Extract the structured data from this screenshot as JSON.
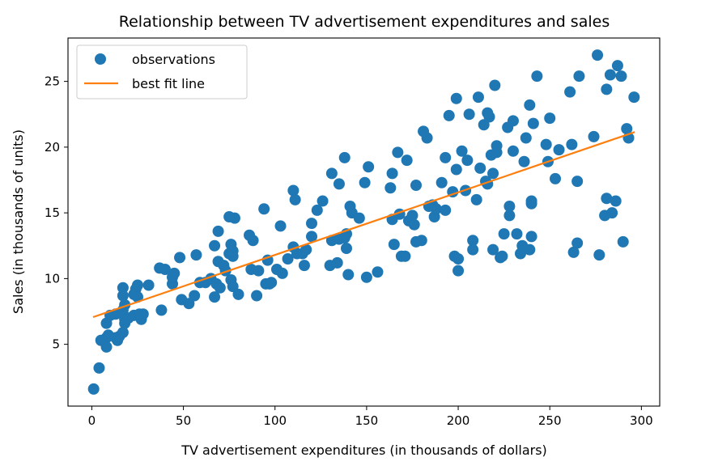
{
  "chart_data": {
    "type": "scatter",
    "title": "Relationship between TV advertisement expenditures and sales",
    "xlabel": "TV advertisement expenditures (in thousands of dollars)",
    "ylabel": "Sales (in thousands of units)",
    "xlim": [
      -13,
      310
    ],
    "ylim": [
      0.3,
      28.3
    ],
    "xticks": [
      0,
      50,
      100,
      150,
      200,
      250,
      300
    ],
    "yticks": [
      5,
      10,
      15,
      20,
      25
    ],
    "grid": false,
    "legend": {
      "position": "top-left",
      "entries": [
        {
          "label": "observations",
          "marker": "circle",
          "color": "#1f77b4"
        },
        {
          "label": "best fit line",
          "marker": "line",
          "color": "#ff7f0e"
        }
      ]
    },
    "series": [
      {
        "name": "observations",
        "kind": "scatter",
        "color": "#1f77b4",
        "points": [
          [
            1,
            1.6
          ],
          [
            4,
            3.2
          ],
          [
            5,
            5.3
          ],
          [
            8,
            5.5
          ],
          [
            8,
            4.8
          ],
          [
            8,
            6.6
          ],
          [
            9,
            5.7
          ],
          [
            10,
            7.2
          ],
          [
            13,
            7.3
          ],
          [
            13,
            5.5
          ],
          [
            14,
            5.3
          ],
          [
            15,
            5.6
          ],
          [
            17,
            5.9
          ],
          [
            17,
            7.6
          ],
          [
            17,
            8.7
          ],
          [
            17,
            9.3
          ],
          [
            18,
            6.6
          ],
          [
            18,
            6.9
          ],
          [
            18,
            8.0
          ],
          [
            20,
            7.0
          ],
          [
            23,
            7.2
          ],
          [
            23,
            8.8
          ],
          [
            24,
            9.2
          ],
          [
            25,
            8.6
          ],
          [
            25,
            9.5
          ],
          [
            26,
            7.3
          ],
          [
            27,
            6.9
          ],
          [
            28,
            7.3
          ],
          [
            31,
            9.5
          ],
          [
            37,
            10.8
          ],
          [
            38,
            7.6
          ],
          [
            40,
            10.7
          ],
          [
            44,
            9.6
          ],
          [
            44,
            10.1
          ],
          [
            45,
            10.4
          ],
          [
            48,
            11.6
          ],
          [
            49,
            8.4
          ],
          [
            53,
            8.1
          ],
          [
            56,
            8.7
          ],
          [
            57,
            11.8
          ],
          [
            59,
            9.7
          ],
          [
            62,
            9.7
          ],
          [
            65,
            10.0
          ],
          [
            67,
            8.6
          ],
          [
            67,
            12.5
          ],
          [
            68,
            9.6
          ],
          [
            69,
            13.6
          ],
          [
            69,
            11.3
          ],
          [
            70,
            9.3
          ],
          [
            72,
            11.0
          ],
          [
            73,
            10.6
          ],
          [
            75,
            14.7
          ],
          [
            75,
            11.9
          ],
          [
            76,
            12.6
          ],
          [
            76,
            9.9
          ],
          [
            77,
            11.7
          ],
          [
            77,
            12.1
          ],
          [
            77,
            9.4
          ],
          [
            78,
            14.6
          ],
          [
            80,
            8.8
          ],
          [
            86,
            13.3
          ],
          [
            87,
            10.7
          ],
          [
            88,
            12.9
          ],
          [
            90,
            8.7
          ],
          [
            91,
            10.6
          ],
          [
            94,
            15.3
          ],
          [
            95,
            9.6
          ],
          [
            96,
            11.4
          ],
          [
            97,
            9.6
          ],
          [
            98,
            9.7
          ],
          [
            101,
            10.7
          ],
          [
            103,
            14.0
          ],
          [
            104,
            10.4
          ],
          [
            107,
            11.5
          ],
          [
            110,
            16.7
          ],
          [
            110,
            12.4
          ],
          [
            111,
            16.0
          ],
          [
            112,
            11.9
          ],
          [
            115,
            11.9
          ],
          [
            116,
            11.0
          ],
          [
            117,
            12.2
          ],
          [
            120,
            13.2
          ],
          [
            120,
            14.2
          ],
          [
            123,
            15.2
          ],
          [
            126,
            15.9
          ],
          [
            130,
            11.0
          ],
          [
            131,
            18.0
          ],
          [
            131,
            12.9
          ],
          [
            134,
            11.2
          ],
          [
            135,
            13.0
          ],
          [
            135,
            17.2
          ],
          [
            138,
            13.1
          ],
          [
            138,
            19.2
          ],
          [
            139,
            13.4
          ],
          [
            139,
            12.3
          ],
          [
            140,
            10.3
          ],
          [
            141,
            15.5
          ],
          [
            142,
            15.0
          ],
          [
            146,
            14.6
          ],
          [
            149,
            17.3
          ],
          [
            150,
            10.1
          ],
          [
            151,
            18.5
          ],
          [
            156,
            10.5
          ],
          [
            163,
            16.9
          ],
          [
            164,
            18.0
          ],
          [
            164,
            14.5
          ],
          [
            165,
            12.6
          ],
          [
            167,
            19.6
          ],
          [
            168,
            14.9
          ],
          [
            169,
            11.7
          ],
          [
            171,
            11.7
          ],
          [
            172,
            19.0
          ],
          [
            173,
            14.4
          ],
          [
            175,
            14.8
          ],
          [
            176,
            14.1
          ],
          [
            177,
            12.8
          ],
          [
            177,
            17.1
          ],
          [
            180,
            12.9
          ],
          [
            181,
            21.2
          ],
          [
            183,
            20.7
          ],
          [
            184,
            15.5
          ],
          [
            186,
            15.6
          ],
          [
            187,
            14.7
          ],
          [
            188,
            15.3
          ],
          [
            191,
            17.3
          ],
          [
            193,
            15.2
          ],
          [
            193,
            19.2
          ],
          [
            195,
            22.4
          ],
          [
            197,
            16.6
          ],
          [
            198,
            11.7
          ],
          [
            199,
            23.7
          ],
          [
            199,
            18.3
          ],
          [
            200,
            11.5
          ],
          [
            200,
            10.6
          ],
          [
            202,
            19.7
          ],
          [
            204,
            16.7
          ],
          [
            205,
            19.0
          ],
          [
            206,
            22.5
          ],
          [
            208,
            12.9
          ],
          [
            208,
            12.2
          ],
          [
            210,
            16.0
          ],
          [
            211,
            23.8
          ],
          [
            212,
            18.4
          ],
          [
            214,
            21.7
          ],
          [
            215,
            17.4
          ],
          [
            216,
            17.2
          ],
          [
            216,
            22.6
          ],
          [
            217,
            22.3
          ],
          [
            218,
            19.4
          ],
          [
            219,
            12.2
          ],
          [
            219,
            18.0
          ],
          [
            220,
            24.7
          ],
          [
            221,
            19.6
          ],
          [
            221,
            20.1
          ],
          [
            223,
            11.6
          ],
          [
            224,
            11.7
          ],
          [
            225,
            13.4
          ],
          [
            227,
            21.5
          ],
          [
            228,
            14.8
          ],
          [
            228,
            15.5
          ],
          [
            230,
            22.0
          ],
          [
            230,
            19.7
          ],
          [
            232,
            13.4
          ],
          [
            234,
            11.9
          ],
          [
            235,
            12.5
          ],
          [
            236,
            18.9
          ],
          [
            237,
            20.7
          ],
          [
            239,
            12.2
          ],
          [
            239,
            23.2
          ],
          [
            240,
            15.7
          ],
          [
            240,
            15.9
          ],
          [
            240,
            13.2
          ],
          [
            241,
            21.8
          ],
          [
            243,
            25.4
          ],
          [
            248,
            20.2
          ],
          [
            249,
            18.9
          ],
          [
            250,
            22.2
          ],
          [
            253,
            17.6
          ],
          [
            255,
            19.8
          ],
          [
            261,
            24.2
          ],
          [
            262,
            20.2
          ],
          [
            263,
            12.0
          ],
          [
            265,
            12.7
          ],
          [
            265,
            17.4
          ],
          [
            266,
            25.4
          ],
          [
            274,
            20.8
          ],
          [
            276,
            27.0
          ],
          [
            277,
            11.8
          ],
          [
            280,
            14.8
          ],
          [
            281,
            16.1
          ],
          [
            281,
            24.4
          ],
          [
            283,
            25.5
          ],
          [
            284,
            15.0
          ],
          [
            286,
            15.9
          ],
          [
            287,
            26.2
          ],
          [
            289,
            25.4
          ],
          [
            290,
            12.8
          ],
          [
            292,
            21.4
          ],
          [
            293,
            20.7
          ],
          [
            296,
            23.8
          ]
        ]
      },
      {
        "name": "best fit line",
        "kind": "line",
        "color": "#ff7f0e",
        "points": [
          [
            0.7,
            7.07
          ],
          [
            296.4,
            21.15
          ]
        ]
      }
    ]
  }
}
